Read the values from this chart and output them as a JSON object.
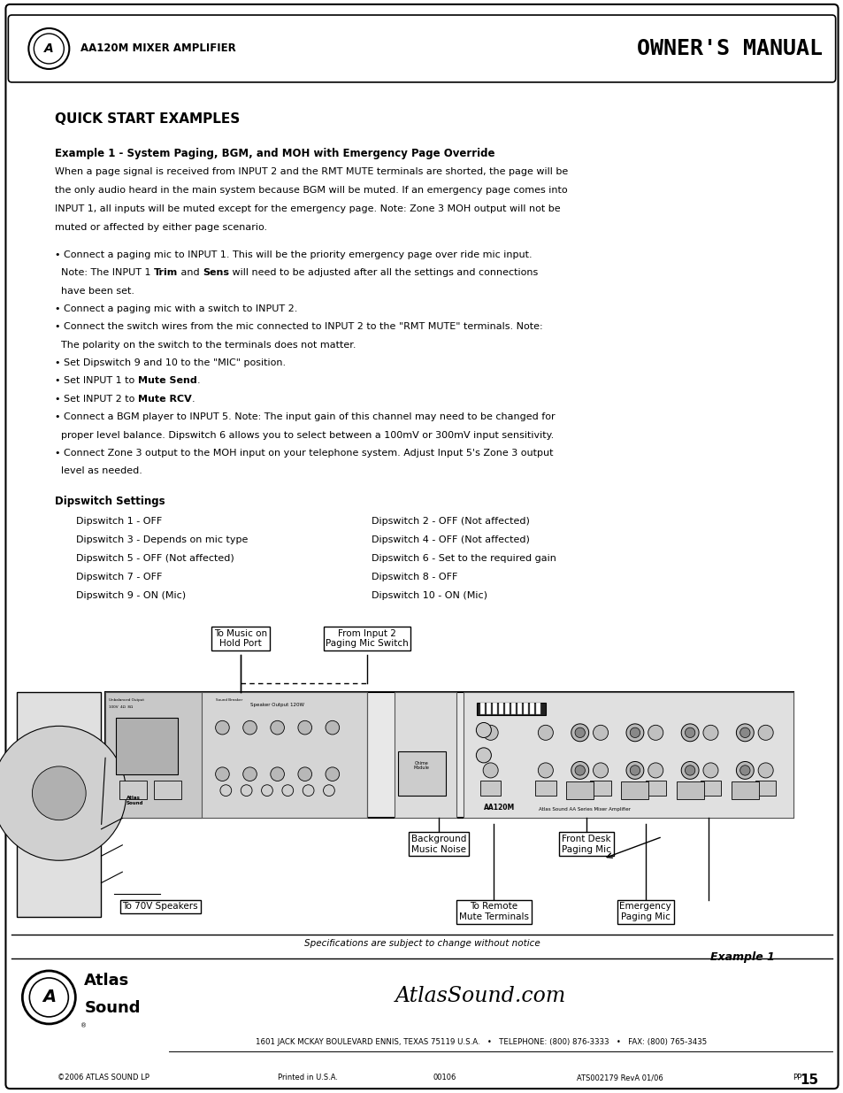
{
  "page_width": 9.54,
  "page_height": 12.35,
  "bg_color": "#ffffff",
  "header_logo_text": "AA120M MIXER AMPLIFIER",
  "header_title_text": "OWNER'S MANUAL",
  "section_title": "QUICK START EXAMPLES",
  "example_title": "Example 1 - System Paging, BGM, and MOH with Emergency Page Override",
  "intro_text": "When a page signal is received from INPUT 2 and the RMT MUTE terminals are shorted, the page will be\nthe only audio heard in the main system because BGM will be muted. If an emergency page comes into\nINPUT 1, all inputs will be muted except for the emergency page. Note: Zone 3 MOH output will not be\nmuted or affected by either page scenario.",
  "bullets_raw": [
    [
      [
        "bullet_normal",
        "• Connect a paging mic to INPUT 1. This will be the priority emergency page over ride mic input."
      ]
    ],
    [
      [
        "normal",
        "  Note: The INPUT 1 "
      ],
      [
        "bold",
        "Trim"
      ],
      [
        "normal",
        " and "
      ],
      [
        "bold",
        "Sens"
      ],
      [
        "normal",
        " will need to be adjusted after all the settings and connections"
      ]
    ],
    [
      [
        "normal",
        "  have been set."
      ]
    ],
    [
      [
        "bullet_normal",
        "• Connect a paging mic with a switch to INPUT 2."
      ]
    ],
    [
      [
        "bullet_normal",
        "• Connect the switch wires from the mic connected to INPUT 2 to the \"RMT MUTE\" terminals. Note:"
      ]
    ],
    [
      [
        "normal",
        "  The polarity on the switch to the terminals does not matter."
      ]
    ],
    [
      [
        "bullet_normal",
        "• Set Dipswitch 9 and 10 to the \"MIC\" position."
      ]
    ],
    [
      [
        "bullet_normal",
        "• Set INPUT 1 to "
      ],
      [
        "bold",
        "Mute Send"
      ],
      [
        "normal",
        "."
      ]
    ],
    [
      [
        "bullet_normal",
        "• Set INPUT 2 to "
      ],
      [
        "bold",
        "Mute RCV"
      ],
      [
        "normal",
        "."
      ]
    ],
    [
      [
        "bullet_normal",
        "• Connect a BGM player to INPUT 5. Note: The input gain of this channel may need to be changed for"
      ]
    ],
    [
      [
        "normal",
        "  proper level balance. Dipswitch 6 allows you to select between a 100mV or 300mV input sensitivity."
      ]
    ],
    [
      [
        "bullet_normal",
        "• Connect Zone 3 output to the MOH input on your telephone system. Adjust Input 5's Zone 3 output"
      ]
    ],
    [
      [
        "normal",
        "  level as needed."
      ]
    ]
  ],
  "dipswitch_title": "Dipswitch Settings",
  "dipswitch_left": [
    "Dipswitch 1 - OFF",
    "Dipswitch 3 - Depends on mic type",
    "Dipswitch 5 - OFF (Not affected)",
    "Dipswitch 7 - OFF",
    "Dipswitch 9 - ON (Mic)"
  ],
  "dipswitch_right": [
    "Dipswitch 2 - OFF (Not affected)",
    "Dipswitch 4 - OFF (Not affected)",
    "Dipswitch 6 - Set to the required gain",
    "Dipswitch 8 - OFF",
    "Dipswitch 10 - ON (Mic)"
  ],
  "callout_top_left": "To Music on\nHold Port",
  "callout_top_right": "From Input 2\nPaging Mic Switch",
  "callout_mid_left": "Background\nMusic Noise",
  "callout_mid_right": "Front Desk\nPaging Mic",
  "callout_bot_left": "To 70V Speakers",
  "callout_bot_mid": "To Remote\nMute Terminals",
  "callout_bot_right": "Emergency\nPaging Mic",
  "example_caption": "Example 1",
  "footer_specs": "Specifications are subject to change without notice",
  "footer_logo_line1": "Atlas",
  "footer_logo_line2": "Sound",
  "footer_website": "AtlasSound.com",
  "footer_address": "1601 JACK MCKAY BOULEVARD ENNIS, TEXAS 75119 U.S.A.   •   TELEPHONE: (800) 876-3333   •   FAX: (800) 765-3435",
  "footer_copyright": "©2006 ATLAS SOUND LP",
  "footer_printed": "Printed in U.S.A.",
  "footer_code": "00106",
  "footer_ats": "ATS002179 RevA 01/06",
  "footer_pp": "PP",
  "page_number": "15"
}
